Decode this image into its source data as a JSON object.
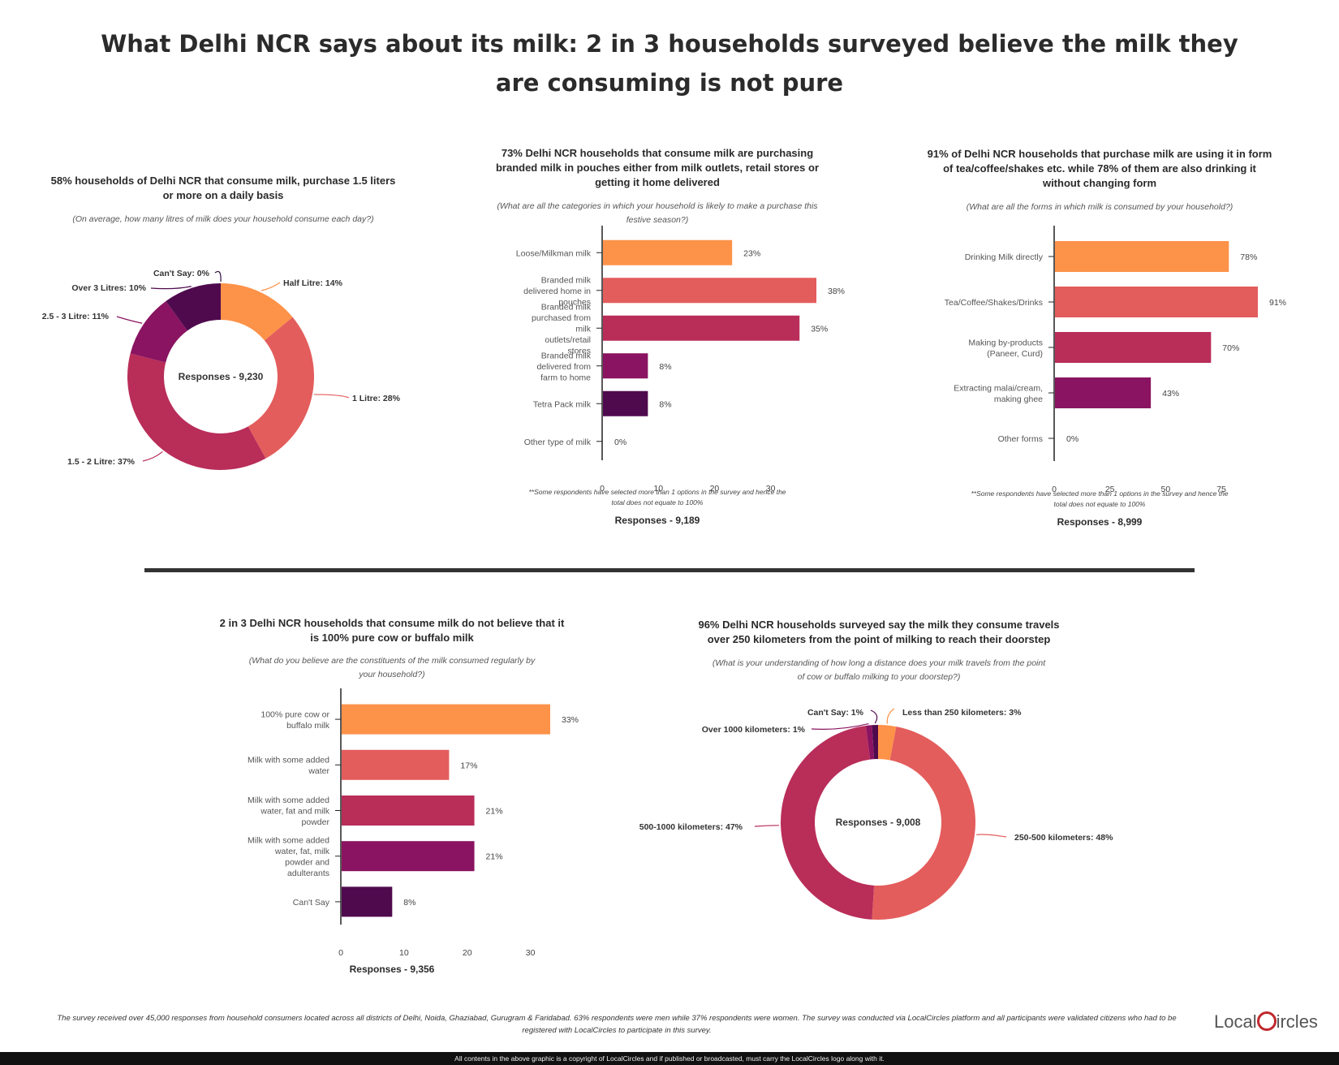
{
  "title": "What Delhi NCR says about its milk: 2 in 3 households surveyed believe the milk they are consuming is not pure",
  "colors": {
    "orange": "#fd9249",
    "coral": "#e35d5c",
    "crimson": "#b92d59",
    "magenta": "#8a1461",
    "plum": "#4f0a4e"
  },
  "chart_data": [
    {
      "type": "pie",
      "donut": true,
      "title": "58% households of Delhi NCR that consume milk, purchase 1.5 liters or more on a daily basis",
      "subtitle": "(On average, how many litres of milk does your household consume each day?)",
      "center_label": "Responses - 9,230",
      "slices": [
        {
          "label": "Half Litre: 14%",
          "value": 14,
          "color": "#fd9249"
        },
        {
          "label": "1 Litre: 28%",
          "value": 28,
          "color": "#e35d5c"
        },
        {
          "label": "1.5 - 2 Litre: 37%",
          "value": 37,
          "color": "#b92d59"
        },
        {
          "label": "2.5 - 3 Litre: 11%",
          "value": 11,
          "color": "#8a1461"
        },
        {
          "label": "Over 3 Litres: 10%",
          "value": 10,
          "color": "#4f0a4e"
        },
        {
          "label": "Can't Say: 0%",
          "value": 0,
          "color": "#2a0a3a"
        }
      ]
    },
    {
      "type": "bar",
      "orientation": "horizontal",
      "title": "73% Delhi NCR households that consume milk are purchasing branded milk in pouches either from milk outlets, retail stores or getting it home delivered",
      "subtitle": "(What are all the categories in which your household is likely to make a purchase this festive season?)",
      "categories": [
        "Loose/Milkman milk",
        "Branded milk delivered home in pouches",
        "Branded milk purchased from milk outlets/retail stores",
        "Branded milk delivered from farm to home",
        "Tetra Pack milk",
        "Other type of milk"
      ],
      "values": [
        23,
        38,
        35,
        8,
        8,
        0
      ],
      "value_labels": [
        "23%",
        "38%",
        "35%",
        "8%",
        "8%",
        "0%"
      ],
      "colors": [
        "#fd9249",
        "#e35d5c",
        "#b92d59",
        "#8a1461",
        "#4f0a4e",
        "#4f0a4e"
      ],
      "xticks": [
        0,
        10,
        20,
        30
      ],
      "xlim": [
        0,
        38
      ],
      "note": "**Some respondents have selected more than 1 options in the survey and hence the total does not equate to 100%",
      "responses": "Responses - 9,189"
    },
    {
      "type": "bar",
      "orientation": "horizontal",
      "title": "91% of Delhi NCR households that purchase milk are using it in form of tea/coffee/shakes etc. while 78% of them are also drinking it without changing form",
      "subtitle": "(What are all the forms in which milk is consumed by your household?)",
      "categories": [
        "Drinking Milk directly",
        "Tea/Coffee/Shakes/Drinks",
        "Making by-products (Paneer, Curd)",
        "Extracting malai/cream, making ghee",
        "Other forms"
      ],
      "values": [
        78,
        91,
        70,
        43,
        0
      ],
      "value_labels": [
        "78%",
        "91%",
        "70%",
        "43%",
        "0%"
      ],
      "colors": [
        "#fd9249",
        "#e35d5c",
        "#b92d59",
        "#8a1461",
        "#4f0a4e"
      ],
      "xticks": [
        0,
        25,
        50,
        75
      ],
      "xlim": [
        0,
        91
      ],
      "note": "**Some respondents have selected more than 1 options in the survey and hence the total does not equate to 100%",
      "responses": "Responses - 8,999"
    },
    {
      "type": "bar",
      "orientation": "horizontal",
      "title": "2 in 3 Delhi NCR households that consume milk do not believe that it is 100% pure cow or buffalo milk",
      "subtitle": "(What do you believe are the constituents of the milk consumed regularly by your household?)",
      "categories": [
        "100% pure cow or buffalo milk",
        "Milk with some added water",
        "Milk with some added water, fat and milk powder",
        "Milk with some added water, fat, milk powder and adulterants",
        "Can't Say"
      ],
      "values": [
        33,
        17,
        21,
        21,
        8
      ],
      "value_labels": [
        "33%",
        "17%",
        "21%",
        "21%",
        "8%"
      ],
      "colors": [
        "#fd9249",
        "#e35d5c",
        "#b92d59",
        "#8a1461",
        "#4f0a4e"
      ],
      "xticks": [
        0,
        10,
        20,
        30
      ],
      "xlim": [
        0,
        33
      ],
      "responses": "Responses - 9,356"
    },
    {
      "type": "pie",
      "donut": true,
      "title": "96% Delhi NCR households surveyed say the milk they consume travels over 250 kilometers from the point of milking to reach their doorstep",
      "subtitle": "(What is your understanding of how long a distance does your milk travels from the point of cow or buffalo milking to your doorstep?)",
      "center_label": "Responses - 9,008",
      "slices": [
        {
          "label": "Less than 250 kilometers: 3%",
          "value": 3,
          "color": "#fd9249"
        },
        {
          "label": "250-500 kilometers: 48%",
          "value": 48,
          "color": "#e35d5c"
        },
        {
          "label": "500-1000 kilometers: 47%",
          "value": 47,
          "color": "#b92d59"
        },
        {
          "label": "Over 1000 kilometers: 1%",
          "value": 1,
          "color": "#8a1461"
        },
        {
          "label": "Can't Say: 1%",
          "value": 1,
          "color": "#4f0a4e"
        }
      ]
    }
  ],
  "footer": {
    "note": "The survey received over 45,000 responses from household consumers located across all districts of Delhi, Noida, Ghaziabad, Gurugram & Faridabad. 63% respondents were men while 37% respondents were women. The survey was conducted via LocalCircles platform and all participants were validated citizens who had to be registered with LocalCircles to participate in this survey.",
    "logo_text": "LocalCircles",
    "copyright": "All contents in the above graphic is a copyright of LocalCircles and if published or broadcasted, must carry the LocalCircles logo along with it."
  }
}
